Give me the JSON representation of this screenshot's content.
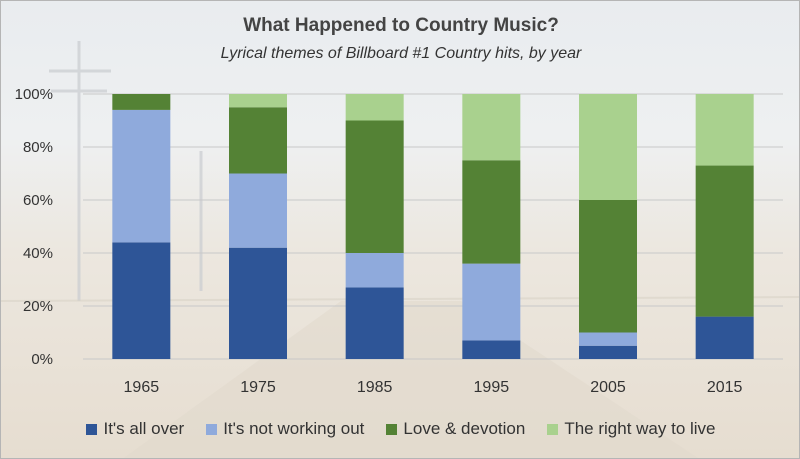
{
  "chart_data": {
    "type": "bar",
    "stacked": true,
    "title": "What Happened to Country Music?",
    "subtitle": "Lyrical themes of Billboard #1 Country hits, by year",
    "categories": [
      "1965",
      "1975",
      "1985",
      "1995",
      "2005",
      "2015"
    ],
    "ylim": [
      0,
      100
    ],
    "yticks": [
      "0%",
      "20%",
      "40%",
      "60%",
      "80%",
      "100%"
    ],
    "grid": true,
    "legend_position": "bottom",
    "series": [
      {
        "name": "It's all over",
        "color": "#2e5597",
        "values": [
          44,
          42,
          27,
          7,
          5,
          16
        ]
      },
      {
        "name": "It's not working out",
        "color": "#8faadc",
        "values": [
          50,
          28,
          13,
          29,
          5,
          0
        ]
      },
      {
        "name": "Love & devotion",
        "color": "#548235",
        "values": [
          6,
          25,
          50,
          39,
          50,
          57
        ]
      },
      {
        "name": "The right way to live",
        "color": "#a9d18e",
        "values": [
          0,
          5,
          10,
          25,
          40,
          27
        ]
      }
    ]
  }
}
